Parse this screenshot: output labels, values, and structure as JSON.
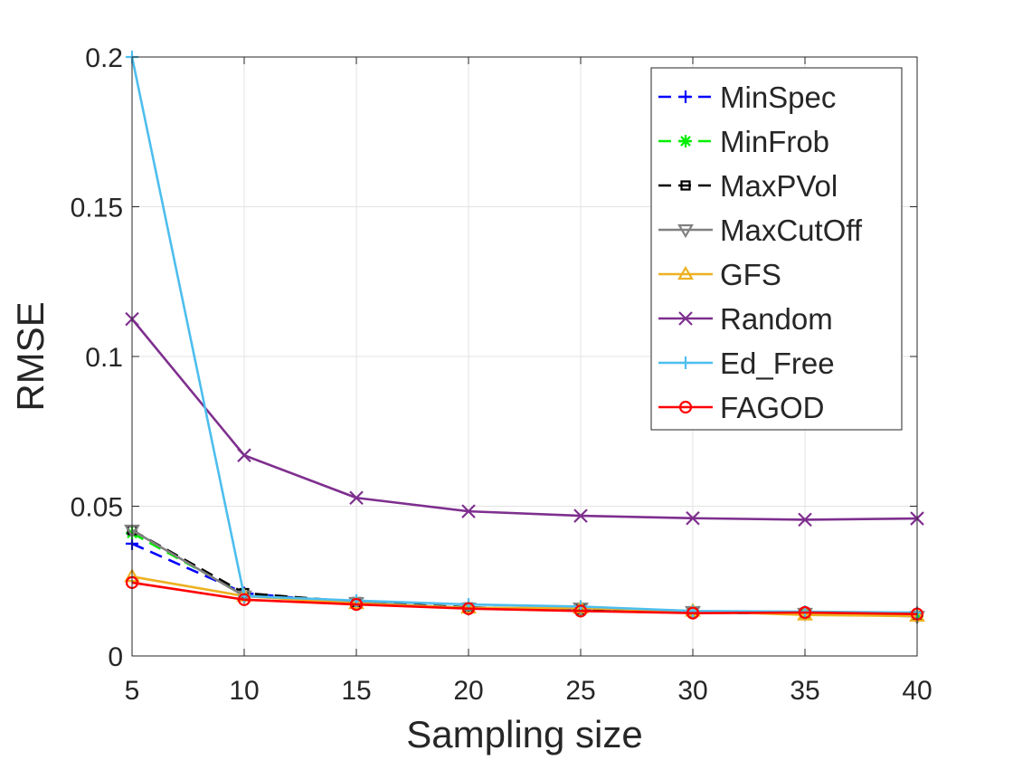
{
  "chart_data": {
    "type": "line",
    "title": "",
    "xlabel": "Sampling size",
    "ylabel": "RMSE",
    "x": [
      5,
      10,
      15,
      20,
      25,
      30,
      35,
      40
    ],
    "xlim": [
      5,
      40
    ],
    "ylim": [
      0,
      0.2
    ],
    "xticks": [
      5,
      10,
      15,
      20,
      25,
      30,
      35,
      40
    ],
    "xtick_labels": [
      "5",
      "10",
      "15",
      "20",
      "25",
      "30",
      "35",
      "40"
    ],
    "yticks": [
      0,
      0.05,
      0.1,
      0.15,
      0.2
    ],
    "ytick_labels": [
      "0",
      "0.05",
      "0.1",
      "0.15",
      "0.2"
    ],
    "grid": true,
    "legend_position": "top-right",
    "series": [
      {
        "name": "MinSpec",
        "color": "#0000ff",
        "dash": "dashed",
        "marker": "plus",
        "values": [
          0.0375,
          0.021,
          0.0175,
          0.016,
          0.0155,
          0.0145,
          0.0142,
          0.0135
        ]
      },
      {
        "name": "MinFrob",
        "color": "#00ee00",
        "dash": "dashed",
        "marker": "asterisk",
        "values": [
          0.041,
          0.0205,
          0.0178,
          0.016,
          0.0155,
          0.0145,
          0.0142,
          0.0133
        ]
      },
      {
        "name": "MaxPVol",
        "color": "#000000",
        "dash": "dashed",
        "marker": "square",
        "values": [
          0.042,
          0.021,
          0.018,
          0.0162,
          0.0155,
          0.0147,
          0.0144,
          0.0134
        ]
      },
      {
        "name": "MaxCutOff",
        "color": "#808080",
        "dash": "solid",
        "marker": "triangle-down",
        "values": [
          0.042,
          0.02,
          0.0178,
          0.016,
          0.016,
          0.0148,
          0.0142,
          0.0132
        ]
      },
      {
        "name": "GFS",
        "color": "#edb120",
        "dash": "solid",
        "marker": "triangle-up",
        "values": [
          0.0265,
          0.02,
          0.0175,
          0.016,
          0.016,
          0.015,
          0.0137,
          0.0133
        ]
      },
      {
        "name": "Random",
        "color": "#7e2f8e",
        "dash": "solid",
        "marker": "x",
        "values": [
          0.1125,
          0.067,
          0.0528,
          0.0483,
          0.0468,
          0.046,
          0.0455,
          0.0459
        ]
      },
      {
        "name": "Ed_Free",
        "color": "#4dbeee",
        "dash": "solid",
        "marker": "plus",
        "values": [
          0.2,
          0.02,
          0.0185,
          0.0172,
          0.0165,
          0.015,
          0.0148,
          0.0145
        ]
      },
      {
        "name": "FAGOD",
        "color": "#ff0000",
        "dash": "solid",
        "marker": "circle",
        "values": [
          0.0245,
          0.0188,
          0.0172,
          0.0158,
          0.015,
          0.0143,
          0.0145,
          0.014
        ]
      }
    ]
  }
}
